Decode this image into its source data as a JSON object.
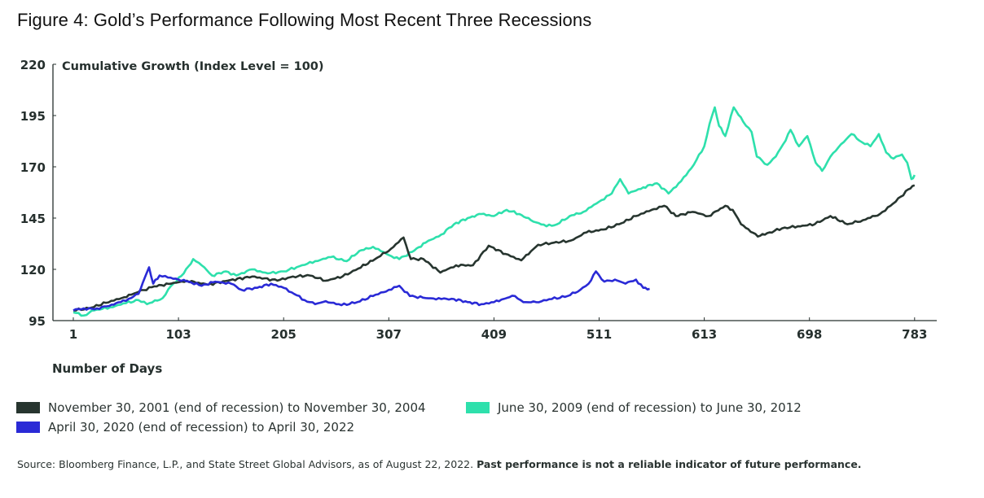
{
  "title": "Figure 4: Gold’s Performance Following Most Recent Three Recessions",
  "source": {
    "text": "Source: Bloomberg Finance, L.P., and State Street Global Advisors, as of August 22, 2022. ",
    "disclaimer": "Past performance is not a reliable indicator of future performance."
  },
  "chart_data": {
    "type": "line",
    "title": "Figure 4: Gold’s Performance Following Most Recent Three Recessions",
    "ylabel": "Cumulative Growth (Index Level = 100)",
    "xlabel": "Number of Days",
    "ylim": [
      95,
      220
    ],
    "yticks": [
      "95",
      "120",
      "145",
      "170",
      "195",
      "220"
    ],
    "xticks": [
      "1",
      "103",
      "205",
      "307",
      "409",
      "511",
      "613",
      "698",
      "783"
    ],
    "x_unit_note": "x values are positions in tick units (0 = tick '1', 8 = tick '783'); ticks are evenly spaced",
    "grid": false,
    "legend_position": "bottom",
    "series": [
      {
        "name": "November 30, 2001 (end of recession) to November 30, 2004",
        "color": "#27352f",
        "points": [
          [
            0,
            100
          ],
          [
            0.15,
            101
          ],
          [
            0.31,
            103.7
          ],
          [
            0.46,
            106
          ],
          [
            0.62,
            109
          ],
          [
            0.77,
            111.7
          ],
          [
            0.93,
            113
          ],
          [
            1.08,
            114.5
          ],
          [
            1.28,
            112.5
          ],
          [
            1.47,
            114.5
          ],
          [
            1.7,
            116.5
          ],
          [
            1.94,
            114.5
          ],
          [
            2.09,
            116.5
          ],
          [
            2.25,
            117
          ],
          [
            2.4,
            114.5
          ],
          [
            2.56,
            116.5
          ],
          [
            2.71,
            120.4
          ],
          [
            2.87,
            125
          ],
          [
            3.02,
            130
          ],
          [
            3.14,
            135.5
          ],
          [
            3.21,
            125
          ],
          [
            3.33,
            125
          ],
          [
            3.49,
            118.4
          ],
          [
            3.64,
            122
          ],
          [
            3.8,
            122
          ],
          [
            3.95,
            131.5
          ],
          [
            4.11,
            127.5
          ],
          [
            4.26,
            124.4
          ],
          [
            4.42,
            132
          ],
          [
            4.57,
            133
          ],
          [
            4.73,
            134
          ],
          [
            4.88,
            138
          ],
          [
            5.04,
            139.4
          ],
          [
            5.19,
            142
          ],
          [
            5.35,
            146
          ],
          [
            5.5,
            149
          ],
          [
            5.62,
            151
          ],
          [
            5.73,
            146
          ],
          [
            5.89,
            148
          ],
          [
            6.04,
            146
          ],
          [
            6.2,
            151
          ],
          [
            6.27,
            149
          ],
          [
            6.35,
            142
          ],
          [
            6.51,
            136
          ],
          [
            6.62,
            138
          ],
          [
            6.74,
            140
          ],
          [
            6.89,
            141
          ],
          [
            7.05,
            142
          ],
          [
            7.2,
            146
          ],
          [
            7.36,
            142
          ],
          [
            7.51,
            144
          ],
          [
            7.67,
            147
          ],
          [
            7.82,
            153
          ],
          [
            7.94,
            159
          ],
          [
            8.0,
            161
          ]
        ]
      },
      {
        "name": "June 30, 2009 (end of recession) to June 30, 2012",
        "color": "#2ee0ac",
        "points": [
          [
            0,
            99
          ],
          [
            0.1,
            97.5
          ],
          [
            0.2,
            100
          ],
          [
            0.35,
            101.5
          ],
          [
            0.5,
            103.5
          ],
          [
            0.62,
            105
          ],
          [
            0.7,
            103
          ],
          [
            0.85,
            106
          ],
          [
            0.93,
            112
          ],
          [
            1.05,
            118
          ],
          [
            1.14,
            125
          ],
          [
            1.22,
            122
          ],
          [
            1.32,
            117
          ],
          [
            1.45,
            119
          ],
          [
            1.55,
            117
          ],
          [
            1.7,
            120
          ],
          [
            1.85,
            118
          ],
          [
            2.0,
            119
          ],
          [
            2.15,
            121.5
          ],
          [
            2.3,
            124
          ],
          [
            2.45,
            126
          ],
          [
            2.6,
            124
          ],
          [
            2.72,
            129
          ],
          [
            2.85,
            131
          ],
          [
            3.0,
            127
          ],
          [
            3.1,
            125
          ],
          [
            3.22,
            128.5
          ],
          [
            3.35,
            133
          ],
          [
            3.5,
            137
          ],
          [
            3.62,
            142
          ],
          [
            3.75,
            145
          ],
          [
            3.88,
            147
          ],
          [
            4.0,
            146
          ],
          [
            4.12,
            149
          ],
          [
            4.24,
            147
          ],
          [
            4.35,
            144
          ],
          [
            4.5,
            141
          ],
          [
            4.6,
            142
          ],
          [
            4.72,
            146
          ],
          [
            4.85,
            148
          ],
          [
            5.0,
            153
          ],
          [
            5.12,
            157
          ],
          [
            5.2,
            164
          ],
          [
            5.28,
            157
          ],
          [
            5.42,
            160
          ],
          [
            5.55,
            162
          ],
          [
            5.66,
            157
          ],
          [
            5.78,
            163
          ],
          [
            5.9,
            171
          ],
          [
            6.0,
            180
          ],
          [
            6.05,
            191
          ],
          [
            6.1,
            199
          ],
          [
            6.14,
            190
          ],
          [
            6.2,
            185
          ],
          [
            6.28,
            199
          ],
          [
            6.37,
            192
          ],
          [
            6.45,
            187
          ],
          [
            6.5,
            175
          ],
          [
            6.6,
            171
          ],
          [
            6.68,
            175
          ],
          [
            6.75,
            181
          ],
          [
            6.82,
            188
          ],
          [
            6.9,
            180
          ],
          [
            6.98,
            185
          ],
          [
            7.06,
            172
          ],
          [
            7.12,
            168
          ],
          [
            7.2,
            175
          ],
          [
            7.3,
            181
          ],
          [
            7.4,
            186
          ],
          [
            7.5,
            182
          ],
          [
            7.58,
            180
          ],
          [
            7.66,
            186
          ],
          [
            7.73,
            177
          ],
          [
            7.8,
            174
          ],
          [
            7.88,
            176
          ],
          [
            7.93,
            172
          ],
          [
            7.97,
            164
          ],
          [
            8.0,
            166
          ]
        ]
      },
      {
        "name": "April 30, 2020 (end of recession) to April 30, 2022",
        "color": "#2a2ad6",
        "points": [
          [
            0,
            100
          ],
          [
            0.1,
            101
          ],
          [
            0.2,
            100.5
          ],
          [
            0.32,
            102
          ],
          [
            0.45,
            104
          ],
          [
            0.55,
            106
          ],
          [
            0.62,
            108
          ],
          [
            0.68,
            116
          ],
          [
            0.72,
            121
          ],
          [
            0.76,
            113
          ],
          [
            0.82,
            117
          ],
          [
            0.9,
            116
          ],
          [
            1.0,
            115
          ],
          [
            1.1,
            114
          ],
          [
            1.22,
            112
          ],
          [
            1.35,
            114
          ],
          [
            1.5,
            113
          ],
          [
            1.6,
            110
          ],
          [
            1.75,
            111
          ],
          [
            1.88,
            113
          ],
          [
            2.0,
            111
          ],
          [
            2.1,
            108
          ],
          [
            2.2,
            105
          ],
          [
            2.3,
            103
          ],
          [
            2.4,
            104.5
          ],
          [
            2.55,
            102.5
          ],
          [
            2.7,
            104
          ],
          [
            2.85,
            107
          ],
          [
            3.0,
            110
          ],
          [
            3.1,
            112
          ],
          [
            3.2,
            107
          ],
          [
            3.35,
            106
          ],
          [
            3.5,
            105.5
          ],
          [
            3.62,
            105.5
          ],
          [
            3.75,
            104
          ],
          [
            3.88,
            103
          ],
          [
            4.0,
            104
          ],
          [
            4.12,
            106
          ],
          [
            4.2,
            107
          ],
          [
            4.28,
            104
          ],
          [
            4.4,
            104
          ],
          [
            4.55,
            105.5
          ],
          [
            4.7,
            107
          ],
          [
            4.82,
            110
          ],
          [
            4.9,
            113
          ],
          [
            4.97,
            119
          ],
          [
            5.05,
            114
          ],
          [
            5.15,
            115
          ],
          [
            5.25,
            113
          ],
          [
            5.35,
            115
          ],
          [
            5.42,
            111
          ],
          [
            5.48,
            110.5
          ]
        ]
      }
    ]
  }
}
